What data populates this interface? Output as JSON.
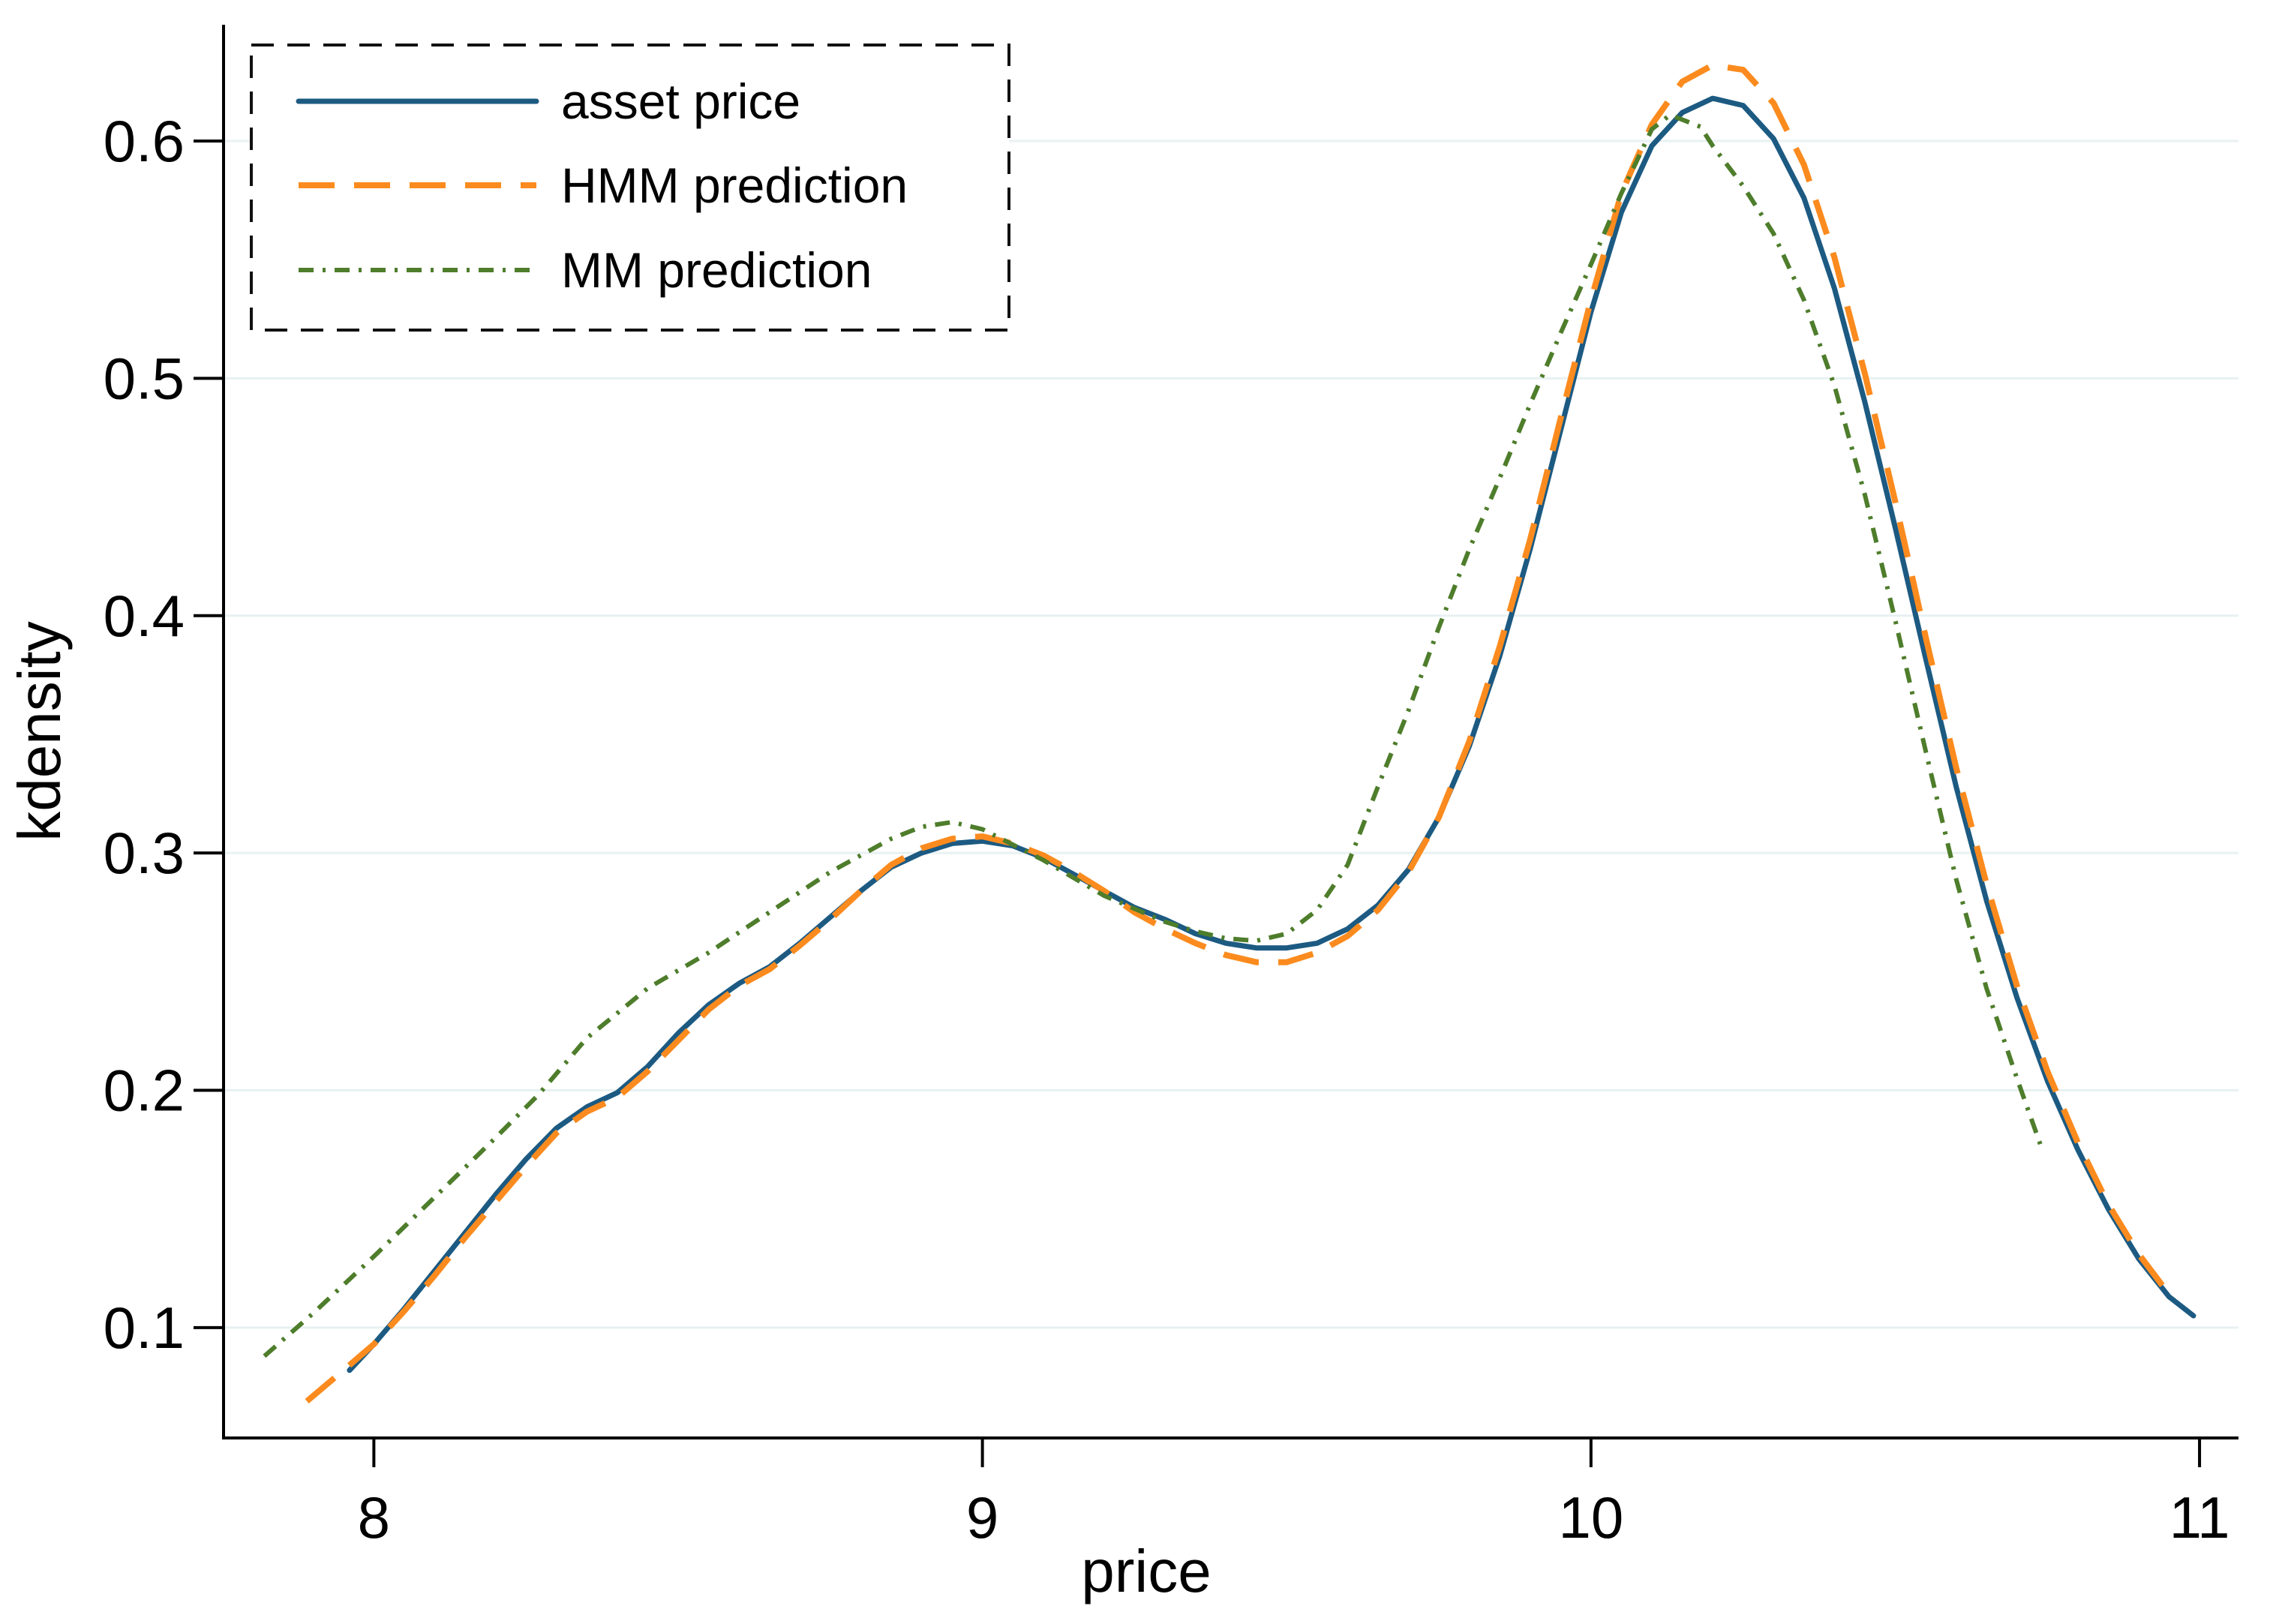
{
  "figure": {
    "background": "#ffffff"
  },
  "legend": {
    "position": "top-left",
    "border_style": "dashed",
    "border_color": "#111111",
    "background": "#ffffff",
    "entries": [
      {
        "label": "asset price"
      },
      {
        "label": "HMM prediction"
      },
      {
        "label": "MM prediction"
      }
    ]
  },
  "chart_data": {
    "type": "line",
    "title": "",
    "xlabel": "price",
    "ylabel": "kdensity",
    "xticks": [
      8,
      9,
      10,
      11
    ],
    "yticks": [
      0.1,
      0.2,
      0.3,
      0.4,
      0.5,
      0.6
    ],
    "xlim": [
      7.753,
      11.064
    ],
    "ylim": [
      0.0535,
      0.649
    ],
    "grid": "horizontal",
    "grid_color": "#e8f1f2",
    "axis_color": "#000000",
    "series": [
      {
        "name": "asset price",
        "color": "#1c5a82",
        "style": "solid",
        "width": 7,
        "dash": null,
        "points": [
          [
            7.96,
            0.082
          ],
          [
            8.0,
            0.093
          ],
          [
            8.05,
            0.108
          ],
          [
            8.1,
            0.124
          ],
          [
            8.15,
            0.14
          ],
          [
            8.2,
            0.156
          ],
          [
            8.25,
            0.171
          ],
          [
            8.3,
            0.184
          ],
          [
            8.35,
            0.193
          ],
          [
            8.4,
            0.199
          ],
          [
            8.45,
            0.21
          ],
          [
            8.5,
            0.224
          ],
          [
            8.55,
            0.236
          ],
          [
            8.6,
            0.245
          ],
          [
            8.65,
            0.252
          ],
          [
            8.7,
            0.262
          ],
          [
            8.75,
            0.273
          ],
          [
            8.8,
            0.284
          ],
          [
            8.85,
            0.294
          ],
          [
            8.9,
            0.3
          ],
          [
            8.95,
            0.304
          ],
          [
            9.0,
            0.305
          ],
          [
            9.05,
            0.303
          ],
          [
            9.1,
            0.298
          ],
          [
            9.15,
            0.291
          ],
          [
            9.2,
            0.284
          ],
          [
            9.25,
            0.277
          ],
          [
            9.3,
            0.272
          ],
          [
            9.35,
            0.266
          ],
          [
            9.4,
            0.262
          ],
          [
            9.45,
            0.26
          ],
          [
            9.5,
            0.26
          ],
          [
            9.55,
            0.262
          ],
          [
            9.6,
            0.268
          ],
          [
            9.65,
            0.278
          ],
          [
            9.7,
            0.293
          ],
          [
            9.75,
            0.315
          ],
          [
            9.8,
            0.345
          ],
          [
            9.85,
            0.383
          ],
          [
            9.9,
            0.428
          ],
          [
            9.95,
            0.478
          ],
          [
            10.0,
            0.528
          ],
          [
            10.05,
            0.57
          ],
          [
            10.1,
            0.598
          ],
          [
            10.15,
            0.612
          ],
          [
            10.2,
            0.618
          ],
          [
            10.25,
            0.615
          ],
          [
            10.3,
            0.601
          ],
          [
            10.35,
            0.576
          ],
          [
            10.4,
            0.538
          ],
          [
            10.45,
            0.49
          ],
          [
            10.5,
            0.437
          ],
          [
            10.55,
            0.382
          ],
          [
            10.6,
            0.328
          ],
          [
            10.65,
            0.28
          ],
          [
            10.7,
            0.239
          ],
          [
            10.75,
            0.204
          ],
          [
            10.8,
            0.175
          ],
          [
            10.85,
            0.15
          ],
          [
            10.9,
            0.129
          ],
          [
            10.95,
            0.113
          ],
          [
            10.99,
            0.105
          ]
        ]
      },
      {
        "name": "HMM prediction",
        "color": "#fb8b1e",
        "style": "dashed",
        "width": 8,
        "dash": [
          48,
          26
        ],
        "points": [
          [
            7.89,
            0.069
          ],
          [
            7.95,
            0.082
          ],
          [
            8.0,
            0.093
          ],
          [
            8.05,
            0.107
          ],
          [
            8.1,
            0.122
          ],
          [
            8.15,
            0.138
          ],
          [
            8.2,
            0.153
          ],
          [
            8.25,
            0.168
          ],
          [
            8.3,
            0.182
          ],
          [
            8.35,
            0.191
          ],
          [
            8.4,
            0.197
          ],
          [
            8.45,
            0.208
          ],
          [
            8.5,
            0.221
          ],
          [
            8.55,
            0.234
          ],
          [
            8.6,
            0.244
          ],
          [
            8.65,
            0.251
          ],
          [
            8.7,
            0.261
          ],
          [
            8.75,
            0.272
          ],
          [
            8.8,
            0.284
          ],
          [
            8.85,
            0.295
          ],
          [
            8.9,
            0.302
          ],
          [
            8.95,
            0.306
          ],
          [
            9.0,
            0.307
          ],
          [
            9.05,
            0.304
          ],
          [
            9.1,
            0.299
          ],
          [
            9.15,
            0.292
          ],
          [
            9.2,
            0.284
          ],
          [
            9.25,
            0.275
          ],
          [
            9.3,
            0.268
          ],
          [
            9.35,
            0.262
          ],
          [
            9.4,
            0.257
          ],
          [
            9.45,
            0.254
          ],
          [
            9.5,
            0.254
          ],
          [
            9.55,
            0.258
          ],
          [
            9.6,
            0.265
          ],
          [
            9.65,
            0.276
          ],
          [
            9.7,
            0.292
          ],
          [
            9.75,
            0.315
          ],
          [
            9.8,
            0.347
          ],
          [
            9.85,
            0.387
          ],
          [
            9.9,
            0.432
          ],
          [
            9.95,
            0.483
          ],
          [
            10.0,
            0.533
          ],
          [
            10.05,
            0.578
          ],
          [
            10.1,
            0.607
          ],
          [
            10.15,
            0.625
          ],
          [
            10.2,
            0.632
          ],
          [
            10.25,
            0.63
          ],
          [
            10.3,
            0.616
          ],
          [
            10.35,
            0.59
          ],
          [
            10.4,
            0.551
          ],
          [
            10.45,
            0.502
          ],
          [
            10.5,
            0.448
          ],
          [
            10.55,
            0.391
          ],
          [
            10.6,
            0.336
          ],
          [
            10.65,
            0.287
          ],
          [
            10.7,
            0.244
          ],
          [
            10.75,
            0.208
          ],
          [
            10.8,
            0.178
          ],
          [
            10.85,
            0.152
          ],
          [
            10.9,
            0.131
          ],
          [
            10.95,
            0.114
          ]
        ]
      },
      {
        "name": "MM prediction",
        "color": "#4e7d2b",
        "style": "dash-dot",
        "width": 6,
        "dash": [
          20,
          12,
          4,
          12
        ],
        "points": [
          [
            7.82,
            0.088
          ],
          [
            7.9,
            0.106
          ],
          [
            8.0,
            0.13
          ],
          [
            8.1,
            0.155
          ],
          [
            8.2,
            0.18
          ],
          [
            8.27,
            0.198
          ],
          [
            8.35,
            0.222
          ],
          [
            8.45,
            0.243
          ],
          [
            8.55,
            0.258
          ],
          [
            8.65,
            0.275
          ],
          [
            8.75,
            0.292
          ],
          [
            8.85,
            0.306
          ],
          [
            8.9,
            0.311
          ],
          [
            8.95,
            0.313
          ],
          [
            9.0,
            0.31
          ],
          [
            9.1,
            0.297
          ],
          [
            9.2,
            0.282
          ],
          [
            9.3,
            0.271
          ],
          [
            9.35,
            0.267
          ],
          [
            9.4,
            0.264
          ],
          [
            9.45,
            0.263
          ],
          [
            9.5,
            0.266
          ],
          [
            9.55,
            0.276
          ],
          [
            9.6,
            0.295
          ],
          [
            9.65,
            0.328
          ],
          [
            9.7,
            0.36
          ],
          [
            9.75,
            0.395
          ],
          [
            9.8,
            0.428
          ],
          [
            9.85,
            0.458
          ],
          [
            9.9,
            0.489
          ],
          [
            9.95,
            0.519
          ],
          [
            10.0,
            0.548
          ],
          [
            10.05,
            0.578
          ],
          [
            10.1,
            0.605
          ],
          [
            10.13,
            0.611
          ],
          [
            10.18,
            0.606
          ],
          [
            10.2,
            0.598
          ],
          [
            10.25,
            0.581
          ],
          [
            10.3,
            0.561
          ],
          [
            10.35,
            0.533
          ],
          [
            10.4,
            0.497
          ],
          [
            10.45,
            0.451
          ],
          [
            10.5,
            0.398
          ],
          [
            10.55,
            0.343
          ],
          [
            10.6,
            0.289
          ],
          [
            10.65,
            0.243
          ],
          [
            10.7,
            0.205
          ],
          [
            10.74,
            0.176
          ]
        ]
      }
    ]
  }
}
